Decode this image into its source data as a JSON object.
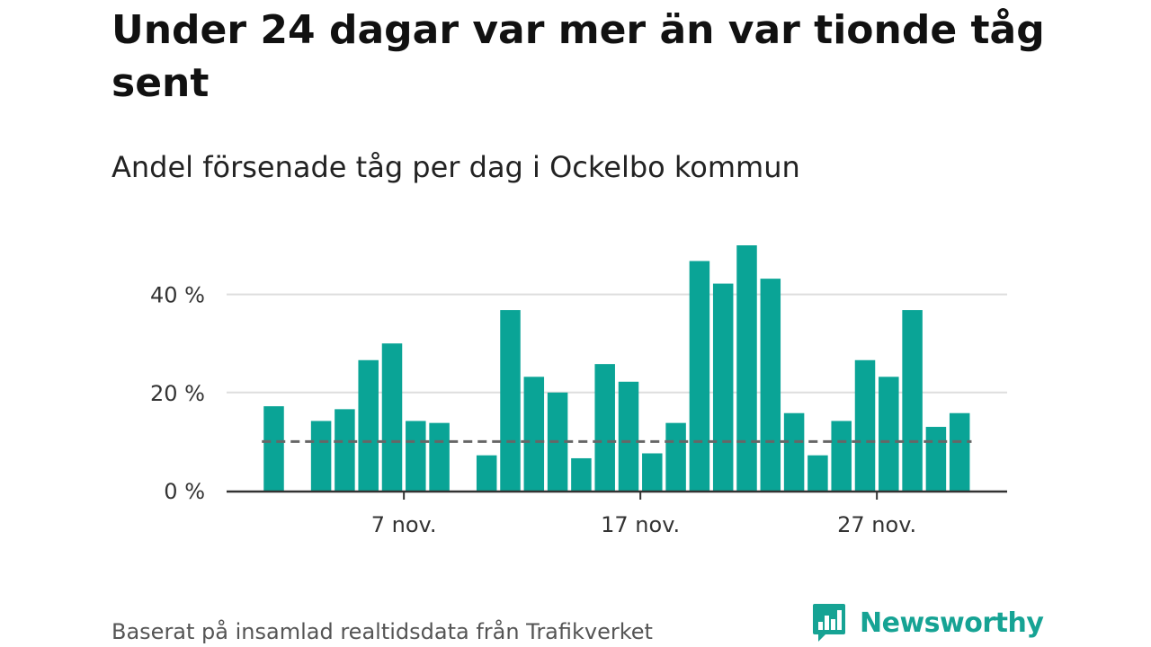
{
  "title": "Under 24 dagar var mer än var tionde tåg sent",
  "subtitle": "Andel försenade tåg per dag i Ockelbo kommun",
  "footer": {
    "source": "Baserat på insamlad realtidsdata från Trafikverket",
    "brand": "Newsworthy"
  },
  "colors": {
    "bar": "#0aa496",
    "reference_line": "#666666",
    "gridline": "#dddddd",
    "axis": "#333333",
    "brand": "#16a394"
  },
  "icons": {
    "logo": "bar-chart-speech-bubble-icon"
  },
  "chart_data": {
    "type": "bar",
    "x_start_day": 1,
    "x_end_day": 30,
    "days": [
      1,
      2,
      3,
      4,
      5,
      6,
      7,
      8,
      9,
      10,
      11,
      12,
      13,
      14,
      15,
      16,
      17,
      18,
      19,
      20,
      21,
      22,
      23,
      24,
      25,
      26,
      27,
      28,
      29,
      30
    ],
    "values": [
      17.2,
      null,
      14.2,
      16.6,
      26.6,
      30.0,
      14.2,
      13.8,
      null,
      7.2,
      36.8,
      23.2,
      20.0,
      6.6,
      25.8,
      22.2,
      7.6,
      13.8,
      46.8,
      42.2,
      50.0,
      43.2,
      15.8,
      7.2,
      14.2,
      26.6,
      23.2,
      36.8,
      13.0,
      15.8
    ],
    "reference_value": 10,
    "yticks": [
      {
        "value": 0,
        "label": "0 %"
      },
      {
        "value": 20,
        "label": "20 %"
      },
      {
        "value": 40,
        "label": "40 %"
      }
    ],
    "xticks": [
      {
        "day": 7,
        "label": "7 nov."
      },
      {
        "day": 17,
        "label": "17 nov."
      },
      {
        "day": 27,
        "label": "27 nov."
      }
    ],
    "ylim": [
      0,
      50
    ],
    "grid": true,
    "xlabel": "",
    "ylabel": ""
  }
}
